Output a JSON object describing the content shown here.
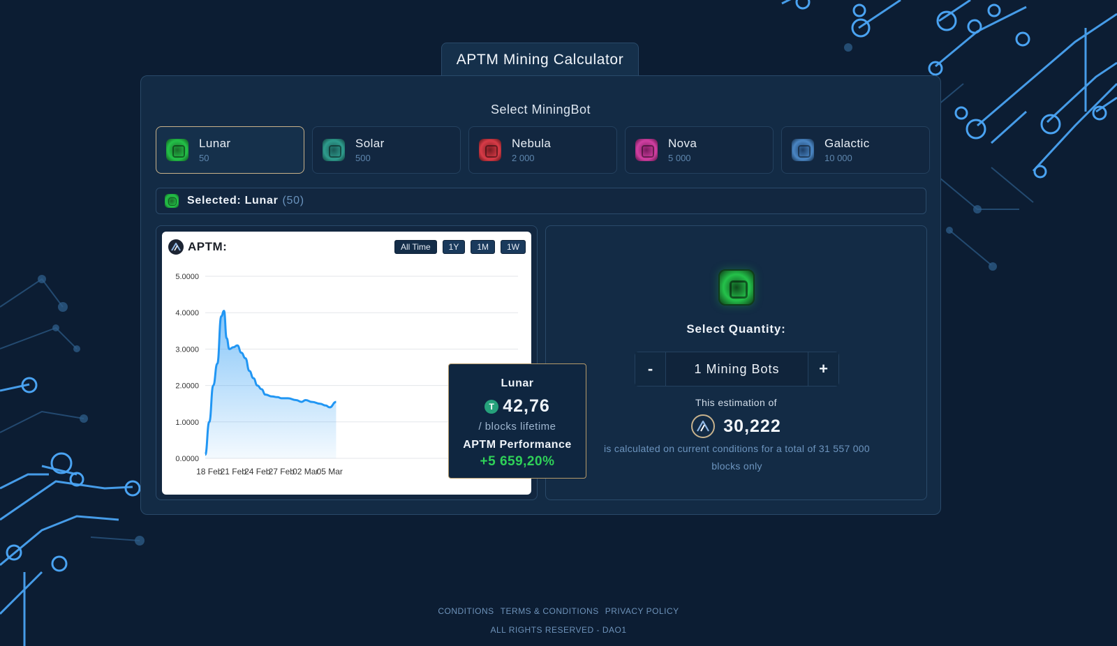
{
  "app": {
    "title": "APTM Mining Calculator"
  },
  "bot_section": {
    "label": "Select MiningBot"
  },
  "bots": [
    {
      "name": "Lunar",
      "price": "50",
      "color": "#23c148",
      "icon": "chip-icon-green",
      "active": true
    },
    {
      "name": "Solar",
      "price": "500",
      "color": "#2e9c8d",
      "icon": "chip-icon-teal",
      "active": false
    },
    {
      "name": "Nebula",
      "price": "2 000",
      "color": "#d83b47",
      "icon": "chip-icon-red",
      "active": false
    },
    {
      "name": "Nova",
      "price": "5 000",
      "color": "#d13fa2",
      "icon": "chip-icon-pink",
      "active": false
    },
    {
      "name": "Galactic",
      "price": "10 000",
      "color": "#4a86c4",
      "icon": "chip-icon-blue",
      "active": false
    }
  ],
  "selected": {
    "prefix": "Selected: Lunar",
    "value": "(50)"
  },
  "chart": {
    "title": "APTM:",
    "ranges": [
      "All Time",
      "1Y",
      "1M",
      "1W"
    ],
    "active_range": "All Time"
  },
  "chart_data": {
    "type": "area",
    "title": "APTM:",
    "xlabel": "",
    "ylabel": "",
    "ylim": [
      0,
      5
    ],
    "y_ticks": [
      "0.0000",
      "1.0000",
      "2.0000",
      "3.0000",
      "4.0000",
      "5.0000"
    ],
    "x_ticks": [
      "18 Feb",
      "21 Feb",
      "24 Feb",
      "27 Feb",
      "02 Mar",
      "05 Mar"
    ],
    "x_start": "18 Feb",
    "x": [
      "18 Feb",
      "18 Feb",
      "19 Feb",
      "19 Feb",
      "20 Feb",
      "20 Feb",
      "20 Feb",
      "21 Feb",
      "21 Feb",
      "22 Feb",
      "22 Feb",
      "23 Feb",
      "23 Feb",
      "24 Feb",
      "24 Feb",
      "25 Feb",
      "25 Feb",
      "26 Feb",
      "27 Feb",
      "27 Feb",
      "28 Feb",
      "01 Mar",
      "02 Mar",
      "02 Mar",
      "03 Mar",
      "04 Mar",
      "05 Mar",
      "05 Mar",
      "06 Mar"
    ],
    "values": [
      0.1,
      1.0,
      2.0,
      2.6,
      3.9,
      4.05,
      3.3,
      3.0,
      3.05,
      3.1,
      2.9,
      2.75,
      2.4,
      2.2,
      2.0,
      1.9,
      1.75,
      1.7,
      1.68,
      1.65,
      1.65,
      1.6,
      1.55,
      1.6,
      1.55,
      1.5,
      1.45,
      1.4,
      1.55
    ],
    "line_color": "#2196f3"
  },
  "tooltip": {
    "name": "Lunar",
    "coin_symbol": "T",
    "amount": "42,76",
    "subtitle": "/ blocks lifetime",
    "performance_label": "APTM Performance",
    "performance_value": "+5 659,20%"
  },
  "quantity": {
    "label": "Select Quantity:",
    "minus": "-",
    "plus": "+",
    "value": "1 Mining Bots",
    "estimate_label": "This estimation of",
    "estimate_value": "30,222",
    "estimate_note": "is calculated on current conditions for a total of 31 557 000 blocks only"
  },
  "footer": {
    "links": [
      "CONDITIONS",
      "TERMS & CONDITIONS",
      "PRIVACY POLICY"
    ],
    "copyright": "ALL RIGHTS RESERVED - DAO1"
  },
  "colors": {
    "background": "#0c1d33",
    "panel": "#132b45",
    "accent": "#c9b28a",
    "positive": "#2fd158"
  }
}
